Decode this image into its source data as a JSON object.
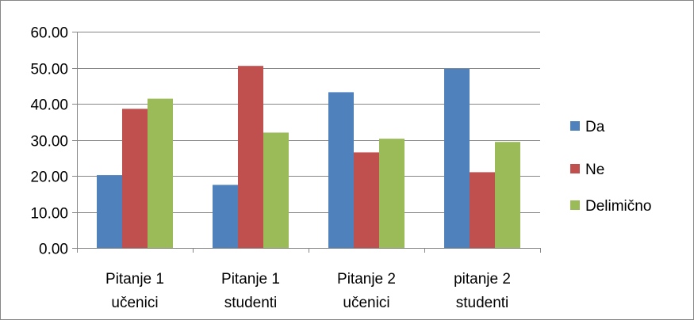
{
  "chart_data": {
    "type": "bar",
    "title": "",
    "xlabel": "",
    "ylabel": "",
    "categories": [
      [
        "Pitanje 1",
        "učenici"
      ],
      [
        "Pitanje 1",
        "studenti"
      ],
      [
        "Pitanje 2",
        "učenici"
      ],
      [
        "pitanje 2",
        "studenti"
      ]
    ],
    "series": [
      {
        "name": "Da",
        "color": "#4F81BD",
        "values": [
          20.2,
          17.5,
          43.2,
          49.7
        ]
      },
      {
        "name": "Ne",
        "color": "#C0504D",
        "values": [
          38.6,
          50.5,
          26.5,
          21.0
        ]
      },
      {
        "name": "Delimično",
        "color": "#9BBB59",
        "values": [
          41.4,
          32.0,
          30.3,
          29.4
        ]
      }
    ],
    "ylim": [
      0,
      60
    ],
    "yticks": [
      "0.00",
      "10.00",
      "20.00",
      "30.00",
      "40.00",
      "50.00",
      "60.00"
    ],
    "grid": true,
    "legend_position": "right"
  }
}
